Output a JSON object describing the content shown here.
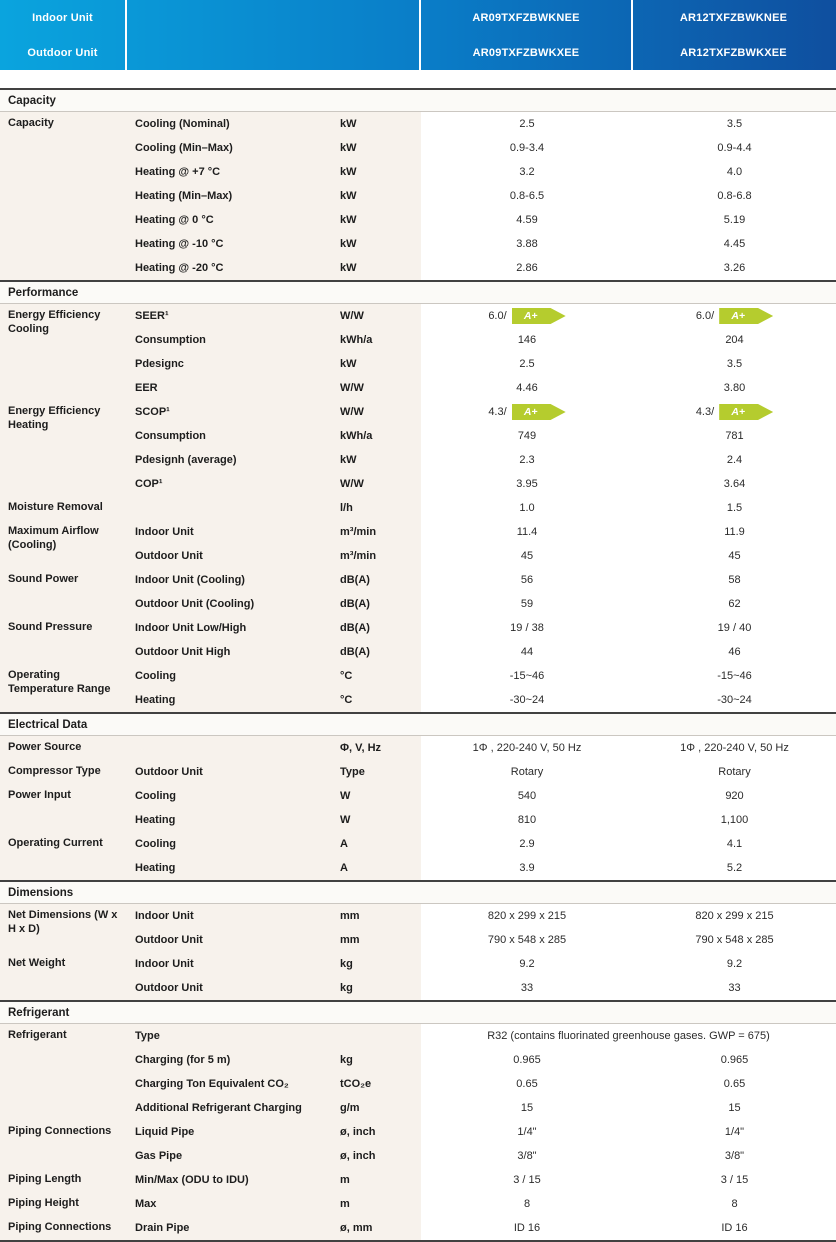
{
  "header": {
    "rows": [
      "Indoor Unit",
      "Outdoor Unit"
    ],
    "columns": [
      {
        "indoor": "AR09TXFZBWKNEE",
        "outdoor": "AR09TXFZBWKXEE"
      },
      {
        "indoor": "AR12TXFZBWKNEE",
        "outdoor": "AR12TXFZBWKXEE"
      }
    ]
  },
  "colors": {
    "header_gradient_start": "#0AA4DE",
    "header_gradient_mid": "#0A7CC7",
    "header_gradient_end": "#0F4F9F",
    "energy_badge_green": "#B5CC2E",
    "row_label_bg": "#F7F2EC",
    "section_bar_bg": "#FBFAF7"
  },
  "energy_badge": {
    "label": "A+",
    "color": "#B5CC2E"
  },
  "table": {
    "sections": [
      {
        "title": "Capacity",
        "groups": [
          {
            "category": "Capacity",
            "rows": [
              {
                "label": "Cooling (Nominal)",
                "unit": "kW",
                "v1": "2.5",
                "v2": "3.5"
              },
              {
                "label": "Cooling (Min–Max)",
                "unit": "kW",
                "v1": "0.9-3.4",
                "v2": "0.9-4.4"
              },
              {
                "label": "Heating @ +7 °C",
                "unit": "kW",
                "v1": "3.2",
                "v2": "4.0"
              },
              {
                "label": "Heating (Min–Max)",
                "unit": "kW",
                "v1": "0.8-6.5",
                "v2": "0.8-6.8"
              },
              {
                "label": "Heating @ 0 °C",
                "unit": "kW",
                "v1": "4.59",
                "v2": "5.19"
              },
              {
                "label": "Heating @ -10 °C",
                "unit": "kW",
                "v1": "3.88",
                "v2": "4.45"
              },
              {
                "label": "Heating @ -20 °C",
                "unit": "kW",
                "v1": "2.86",
                "v2": "3.26"
              }
            ]
          }
        ]
      },
      {
        "title": "Performance",
        "groups": [
          {
            "category": "Energy Efficiency Cooling",
            "rows": [
              {
                "label": "SEER¹",
                "unit": "W/W",
                "v1": "6.0/",
                "v2": "6.0/",
                "badge": true
              },
              {
                "label": "Consumption",
                "unit": "kWh/a",
                "v1": "146",
                "v2": "204"
              },
              {
                "label": "Pdesignc",
                "unit": "kW",
                "v1": "2.5",
                "v2": "3.5"
              },
              {
                "label": "EER",
                "unit": "W/W",
                "v1": "4.46",
                "v2": "3.80"
              }
            ]
          },
          {
            "category": "Energy Efficiency Heating",
            "rows": [
              {
                "label": "SCOP¹",
                "unit": "W/W",
                "v1": "4.3/",
                "v2": "4.3/",
                "badge": true
              },
              {
                "label": "Consumption",
                "unit": "kWh/a",
                "v1": "749",
                "v2": "781"
              },
              {
                "label": "Pdesignh (average)",
                "unit": "kW",
                "v1": "2.3",
                "v2": "2.4"
              },
              {
                "label": "COP¹",
                "unit": "W/W",
                "v1": "3.95",
                "v2": "3.64"
              }
            ]
          },
          {
            "category": "Moisture Removal",
            "rows": [
              {
                "label": "",
                "unit": "l/h",
                "v1": "1.0",
                "v2": "1.5"
              }
            ]
          },
          {
            "category": "Maximum Airflow (Cooling)",
            "rows": [
              {
                "label": "Indoor Unit",
                "unit": "m³/min",
                "v1": "11.4",
                "v2": "11.9"
              },
              {
                "label": "Outdoor Unit",
                "unit": "m³/min",
                "v1": "45",
                "v2": "45"
              }
            ]
          },
          {
            "category": "Sound Power",
            "rows": [
              {
                "label": "Indoor Unit (Cooling)",
                "unit": "dB(A)",
                "v1": "56",
                "v2": "58"
              },
              {
                "label": "Outdoor Unit (Cooling)",
                "unit": "dB(A)",
                "v1": "59",
                "v2": "62"
              }
            ]
          },
          {
            "category": "Sound Pressure",
            "rows": [
              {
                "label": "Indoor Unit Low/High",
                "unit": "dB(A)",
                "v1": "19 / 38",
                "v2": "19 / 40"
              },
              {
                "label": "Outdoor Unit High",
                "unit": "dB(A)",
                "v1": "44",
                "v2": "46"
              }
            ]
          },
          {
            "category": "Operating Temperature Range",
            "rows": [
              {
                "label": "Cooling",
                "unit": "°C",
                "v1": "-15~46",
                "v2": "-15~46"
              },
              {
                "label": "Heating",
                "unit": "°C",
                "v1": "-30~24",
                "v2": "-30~24"
              }
            ]
          }
        ]
      },
      {
        "title": "Electrical Data",
        "groups": [
          {
            "category": "Power Source",
            "rows": [
              {
                "label": "",
                "unit": "Φ, V, Hz",
                "v1": "1Φ , 220-240 V, 50 Hz",
                "v2": "1Φ , 220-240 V, 50 Hz"
              }
            ]
          },
          {
            "category": "Compressor Type",
            "rows": [
              {
                "label": "Outdoor Unit",
                "unit": "Type",
                "v1": "Rotary",
                "v2": "Rotary"
              }
            ]
          },
          {
            "category": "Power Input",
            "rows": [
              {
                "label": "Cooling",
                "unit": "W",
                "v1": "540",
                "v2": "920"
              },
              {
                "label": "Heating",
                "unit": "W",
                "v1": "810",
                "v2": "1,100"
              }
            ]
          },
          {
            "category": "Operating Current",
            "rows": [
              {
                "label": "Cooling",
                "unit": "A",
                "v1": "2.9",
                "v2": "4.1"
              },
              {
                "label": "Heating",
                "unit": "A",
                "v1": "3.9",
                "v2": "5.2"
              }
            ]
          }
        ]
      },
      {
        "title": "Dimensions",
        "groups": [
          {
            "category": "Net Dimensions (W x H x D)",
            "rows": [
              {
                "label": "Indoor Unit",
                "unit": "mm",
                "v1": "820 x 299 x 215",
                "v2": "820 x 299 x 215"
              },
              {
                "label": "Outdoor Unit",
                "unit": "mm",
                "v1": "790 x 548 x 285",
                "v2": "790 x 548 x 285"
              }
            ]
          },
          {
            "category": "Net Weight",
            "rows": [
              {
                "label": "Indoor Unit",
                "unit": "kg",
                "v1": "9.2",
                "v2": "9.2"
              },
              {
                "label": "Outdoor Unit",
                "unit": "kg",
                "v1": "33",
                "v2": "33"
              }
            ]
          }
        ]
      },
      {
        "title": "Refrigerant",
        "groups": [
          {
            "category": "Refrigerant",
            "rows": [
              {
                "label": "Type",
                "unit": "",
                "span": "R32 (contains fluorinated greenhouse gases. GWP = 675)"
              },
              {
                "label": "Charging (for 5 m)",
                "unit": "kg",
                "v1": "0.965",
                "v2": "0.965"
              },
              {
                "label": "Charging Ton Equivalent CO₂",
                "unit": "tCO₂e",
                "v1": "0.65",
                "v2": "0.65"
              },
              {
                "label": "Additional Refrigerant Charging",
                "unit": "g/m",
                "v1": "15",
                "v2": "15"
              }
            ]
          },
          {
            "category": "Piping Connections",
            "rows": [
              {
                "label": "Liquid Pipe",
                "unit": "ø, inch",
                "v1": "1/4\"",
                "v2": "1/4\""
              },
              {
                "label": "Gas Pipe",
                "unit": "ø, inch",
                "v1": "3/8\"",
                "v2": "3/8\""
              }
            ]
          },
          {
            "category": "Piping Length",
            "rows": [
              {
                "label": "Min/Max (ODU to IDU)",
                "unit": "m",
                "v1": "3 / 15",
                "v2": "3 / 15"
              }
            ]
          },
          {
            "category": "Piping Height",
            "rows": [
              {
                "label": "Max",
                "unit": "m",
                "v1": "8",
                "v2": "8"
              }
            ]
          },
          {
            "category": "Piping Connections",
            "rows": [
              {
                "label": "Drain Pipe",
                "unit": "ø, mm",
                "v1": "ID 16",
                "v2": "ID 16"
              }
            ]
          }
        ]
      }
    ]
  }
}
